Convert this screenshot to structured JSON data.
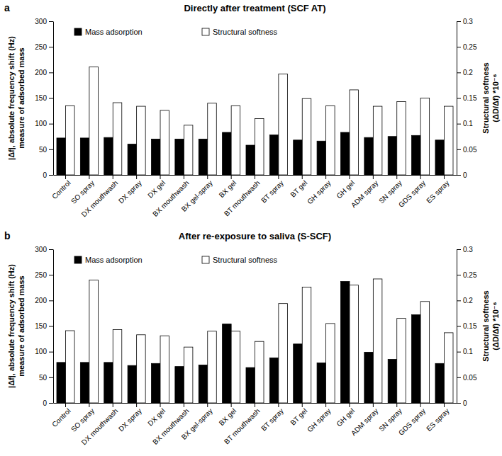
{
  "chart_data": [
    {
      "type": "bar",
      "title": "Directly after treatment (SCF AT)",
      "annotations": [
        "a"
      ],
      "y_label": [
        "|Δf|, absolute frequency shift (Hz)",
        "measure of adsorbed mass"
      ],
      "y2_label": [
        "Structural softness",
        "(ΔD/Δf) *10⁻⁶"
      ],
      "categories": [
        "Control",
        "SO spray",
        "DX mouthwash",
        "DX spray",
        "DX gel",
        "BX mouthwash",
        "BX gel-spray",
        "BX gel",
        "BT mouthwash",
        "BT spray",
        "BT gel",
        "GH spray",
        "GH gel",
        "ADM spray",
        "SN spray",
        "GDS spray",
        "ES spray"
      ],
      "series": [
        {
          "name": "Mass adsorption",
          "color": "#000000",
          "values": [
            72,
            72,
            73,
            60,
            70,
            70,
            70,
            83,
            58,
            78,
            68,
            66,
            83,
            73,
            75,
            77,
            68
          ]
        },
        {
          "name": "Structural softness",
          "color": "#ffffff",
          "axis": "y2",
          "values": [
            0.135,
            0.211,
            0.141,
            0.134,
            0.126,
            0.097,
            0.14,
            0.135,
            0.11,
            0.197,
            0.149,
            0.135,
            0.166,
            0.134,
            0.143,
            0.15,
            0.134
          ]
        }
      ],
      "ylim": [
        0,
        300
      ],
      "yticks": [
        0,
        50,
        100,
        150,
        200,
        250,
        300
      ],
      "y2lim": [
        0,
        0.3
      ],
      "y2ticks": [
        0,
        0.05,
        0.1,
        0.15,
        0.2,
        0.25,
        0.3
      ],
      "legend": "upper left",
      "grid": false
    },
    {
      "type": "bar",
      "title": "After re-exposure to saliva (S-SCF)",
      "annotations": [
        "b"
      ],
      "y_label": [
        "|Δf|, absolute frequency shift (Hz)",
        "measure of adsorbed mass"
      ],
      "y2_label": [
        "Structural softness",
        "(ΔD/Δf) *10⁻⁶"
      ],
      "categories": [
        "Control",
        "SO spray",
        "DX mouthwash",
        "DX spray",
        "DX gel",
        "BX mouthwash",
        "BX gel-spray",
        "BX gel",
        "BT mouthwash",
        "BT spray",
        "BT gel",
        "GH spray",
        "GH gel",
        "ADM spray",
        "SN spray",
        "GDS spray",
        "ES spray"
      ],
      "series": [
        {
          "name": "Mass adsorption",
          "color": "#000000",
          "values": [
            79,
            79,
            79,
            73,
            77,
            71,
            74,
            154,
            69,
            88,
            115,
            78,
            237,
            99,
            85,
            172,
            77
          ]
        },
        {
          "name": "Structural softness",
          "color": "#ffffff",
          "axis": "y2",
          "values": [
            0.141,
            0.24,
            0.143,
            0.133,
            0.131,
            0.109,
            0.14,
            0.14,
            0.12,
            0.194,
            0.226,
            0.155,
            0.23,
            0.242,
            0.165,
            0.198,
            0.137
          ]
        }
      ],
      "ylim": [
        0,
        300
      ],
      "yticks": [
        0,
        50,
        100,
        150,
        200,
        250,
        300
      ],
      "y2lim": [
        0,
        0.3
      ],
      "y2ticks": [
        0,
        0.05,
        0.1,
        0.15,
        0.2,
        0.25,
        0.3
      ],
      "legend": "upper left",
      "grid": false
    }
  ]
}
